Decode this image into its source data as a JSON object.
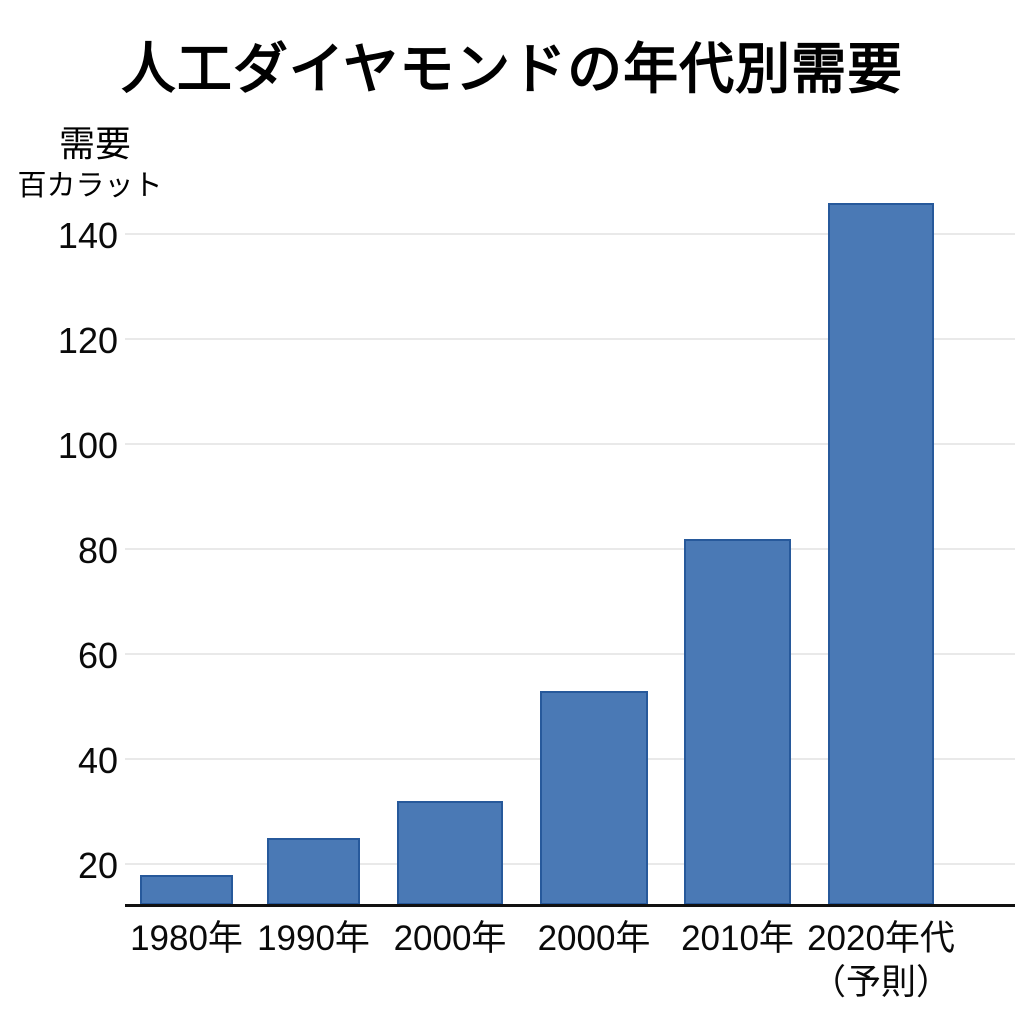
{
  "title": "人工ダイヤモンドの年代別需要",
  "y_axis": {
    "unit_line1": "需要",
    "unit_line2": "百カラット",
    "ticks": [
      20,
      40,
      60,
      80,
      100,
      120,
      140
    ]
  },
  "chart_data": {
    "type": "bar",
    "title": "人工ダイヤモンドの年代別需要",
    "categories": [
      "1980年",
      "1990年",
      "2000年",
      "2000年",
      "2010年",
      "2020年代\n（予則）"
    ],
    "values": [
      18,
      25,
      32,
      53,
      82,
      146
    ],
    "xlabel": "",
    "ylabel": "需要（百カラット）",
    "ylim": [
      12,
      156
    ],
    "yticks": [
      20,
      40,
      60,
      80,
      100,
      120,
      140
    ],
    "grid": true,
    "legend": false,
    "bar_color": "#4a79b5",
    "bar_border_color": "#27599b",
    "gridline_color": "#e9e9e9",
    "axis_color": "#111111"
  }
}
